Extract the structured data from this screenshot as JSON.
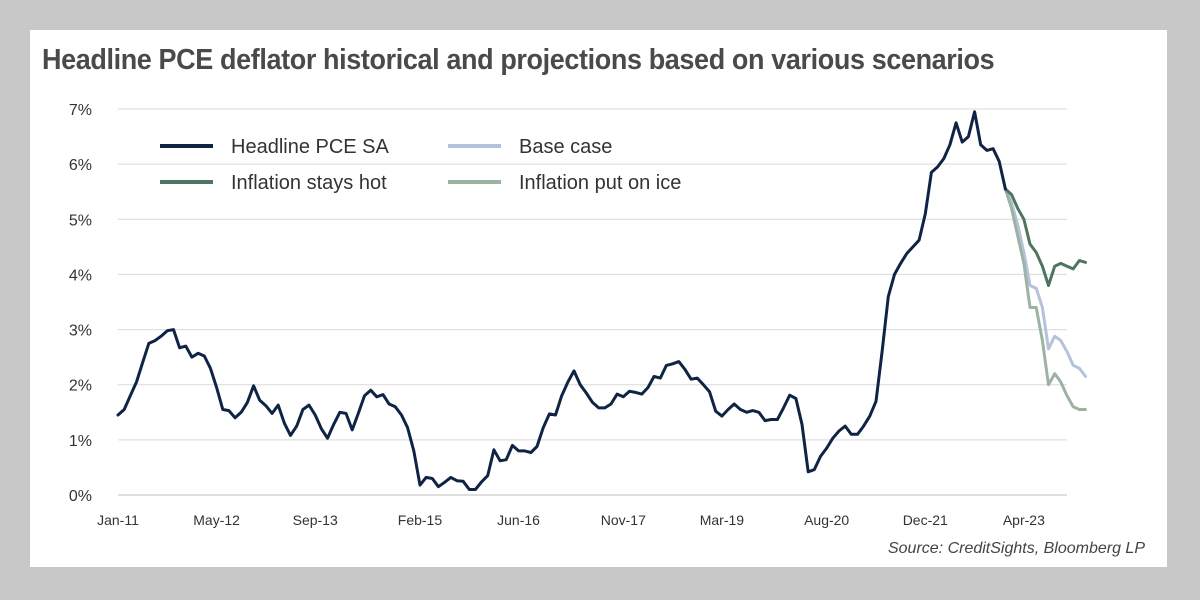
{
  "title": "Headline PCE deflator historical and projections based on various scenarios",
  "source": "Source: CreditSights, Bloomberg LP",
  "chart_data": {
    "type": "line",
    "title": "Headline PCE deflator historical and projections based on various scenarios",
    "xlabel": "",
    "ylabel": "",
    "ylim": [
      0,
      7
    ],
    "y_ticks": [
      "0%",
      "1%",
      "2%",
      "3%",
      "4%",
      "5%",
      "6%",
      "7%"
    ],
    "x_ticks": [
      "Jan-11",
      "May-12",
      "Sep-13",
      "Feb-15",
      "Jun-16",
      "Nov-17",
      "Mar-19",
      "Aug-20",
      "Dec-21",
      "Apr-23"
    ],
    "x_tick_positions": [
      0,
      16,
      32,
      49,
      65,
      82,
      98,
      115,
      131,
      147
    ],
    "grid": "horizontal",
    "legend_position": "top-left",
    "series": [
      {
        "name": "Headline PCE SA",
        "color": "#0f2445",
        "x_start": 0,
        "values": [
          1.45,
          1.55,
          1.8,
          2.05,
          2.4,
          2.75,
          2.8,
          2.88,
          2.98,
          3.0,
          2.67,
          2.7,
          2.5,
          2.57,
          2.52,
          2.3,
          1.95,
          1.55,
          1.53,
          1.4,
          1.5,
          1.68,
          1.98,
          1.72,
          1.62,
          1.48,
          1.63,
          1.3,
          1.08,
          1.25,
          1.55,
          1.63,
          1.45,
          1.2,
          1.03,
          1.28,
          1.5,
          1.48,
          1.18,
          1.48,
          1.8,
          1.9,
          1.78,
          1.82,
          1.65,
          1.6,
          1.45,
          1.22,
          0.8,
          0.18,
          0.32,
          0.3,
          0.15,
          0.23,
          0.32,
          0.26,
          0.25,
          0.1,
          0.1,
          0.24,
          0.35,
          0.82,
          0.62,
          0.64,
          0.9,
          0.8,
          0.8,
          0.77,
          0.88,
          1.22,
          1.47,
          1.45,
          1.8,
          2.05,
          2.25,
          2.0,
          1.85,
          1.68,
          1.58,
          1.58,
          1.65,
          1.83,
          1.78,
          1.88,
          1.86,
          1.83,
          1.95,
          2.15,
          2.12,
          2.35,
          2.38,
          2.42,
          2.28,
          2.1,
          2.12,
          2.0,
          1.87,
          1.52,
          1.43,
          1.55,
          1.65,
          1.55,
          1.5,
          1.53,
          1.5,
          1.35,
          1.37,
          1.37,
          1.58,
          1.81,
          1.75,
          1.28,
          0.42,
          0.46,
          0.7,
          0.85,
          1.03,
          1.16,
          1.25,
          1.1,
          1.1,
          1.25,
          1.43,
          1.7,
          2.6,
          3.6,
          4.0,
          4.2,
          4.38,
          4.5,
          4.62,
          5.1,
          5.85,
          5.95,
          6.1,
          6.35,
          6.75,
          6.4,
          6.5,
          6.95,
          6.35,
          6.25,
          6.28,
          6.05,
          5.55
        ]
      },
      {
        "name": "Base case",
        "color": "#b4c2dc",
        "x_start": 144,
        "values": [
          5.55,
          5.3,
          4.9,
          4.4,
          3.8,
          3.75,
          3.4,
          2.65,
          2.88,
          2.8,
          2.6,
          2.35,
          2.3,
          2.15
        ]
      },
      {
        "name": "Inflation stays hot",
        "color": "#4f7560",
        "x_start": 144,
        "values": [
          5.55,
          5.45,
          5.2,
          5.0,
          4.55,
          4.4,
          4.15,
          3.8,
          4.15,
          4.2,
          4.15,
          4.1,
          4.25,
          4.22
        ]
      },
      {
        "name": "Inflation put on ice",
        "color": "#9db3a2",
        "x_start": 144,
        "values": [
          5.55,
          5.2,
          4.7,
          4.2,
          3.4,
          3.4,
          2.8,
          2.0,
          2.2,
          2.05,
          1.8,
          1.6,
          1.55,
          1.55
        ]
      }
    ]
  }
}
